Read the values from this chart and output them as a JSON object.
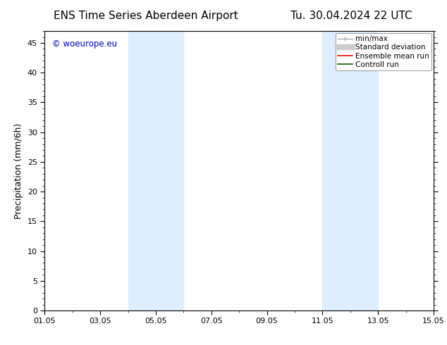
{
  "title_left": "ENS Time Series Aberdeen Airport",
  "title_right": "Tu. 30.04.2024 22 UTC",
  "ylabel": "Precipitation (mm/6h)",
  "ylim": [
    0,
    47
  ],
  "yticks": [
    0,
    5,
    10,
    15,
    20,
    25,
    30,
    35,
    40,
    45
  ],
  "xtick_labels": [
    "01.05",
    "03.05",
    "05.05",
    "07.05",
    "09.05",
    "11.05",
    "13.05",
    "15.05"
  ],
  "xtick_positions": [
    0,
    2,
    4,
    6,
    8,
    10,
    12,
    14
  ],
  "xlim": [
    0,
    14
  ],
  "blue_bands": [
    {
      "x_start": 3.0,
      "x_end": 5.0
    },
    {
      "x_start": 10.0,
      "x_end": 12.0
    }
  ],
  "watermark_text": "© woeurope.eu",
  "watermark_color": "#0000cc",
  "background_color": "#ffffff",
  "plot_bg_color": "#ffffff",
  "band_color": "#ddeeff",
  "title_fontsize": 11,
  "axis_label_fontsize": 9,
  "tick_fontsize": 8,
  "legend_fontsize": 7.5
}
